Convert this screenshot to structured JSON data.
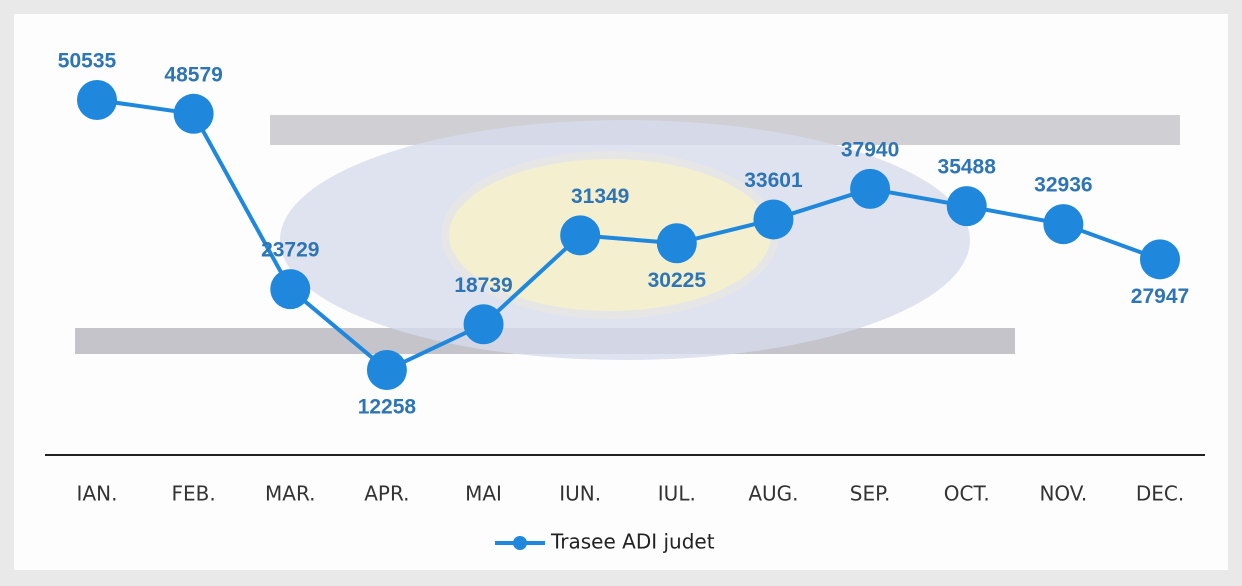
{
  "chart_data": {
    "type": "line",
    "categories": [
      "IAN.",
      "FEB.",
      "MAR.",
      "APR.",
      "MAI",
      "IUN.",
      "IUL.",
      "AUG.",
      "SEP.",
      "OCT.",
      "NOV.",
      "DEC."
    ],
    "series": [
      {
        "name": "Trasee ADI judet",
        "color": "#1f88dc",
        "values": [
          50535,
          48579,
          23729,
          12258,
          18739,
          31349,
          30225,
          33601,
          37940,
          35488,
          32936,
          27947
        ]
      }
    ]
  }
}
